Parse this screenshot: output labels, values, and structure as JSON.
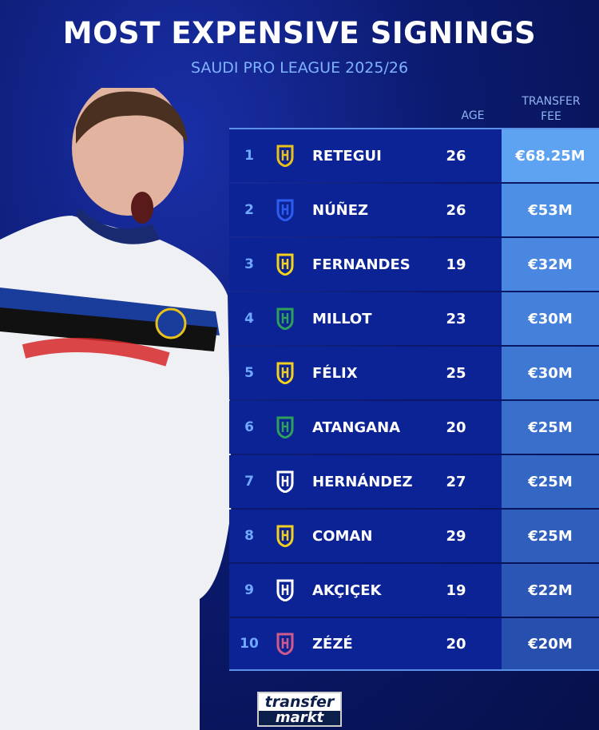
{
  "title": "MOST EXPENSIVE SIGNINGS",
  "subtitle": "SAUDI PRO LEAGUE 2025/26",
  "headers": {
    "age": "AGE",
    "fee_line1": "TRANSFER",
    "fee_line2": "FEE"
  },
  "rows": [
    {
      "rank": "1",
      "name": "RETEGUI",
      "age": "26",
      "fee": "€68.25M",
      "crest": "al-qadsiah-crest",
      "crest_color": "#e8c21a",
      "fee_bg": "#5ea2f2"
    },
    {
      "rank": "2",
      "name": "NÚÑEZ",
      "age": "26",
      "fee": "€53M",
      "crest": "al-hilal-crest",
      "crest_color": "#2c5cf0",
      "fee_bg": "#4e8fe6"
    },
    {
      "rank": "3",
      "name": "FERNANDES",
      "age": "19",
      "fee": "€32M",
      "crest": "al-ittihad-crest",
      "crest_color": "#f2d21a",
      "fee_bg": "#4a87e0"
    },
    {
      "rank": "4",
      "name": "MILLOT",
      "age": "23",
      "fee": "€30M",
      "crest": "al-ahli-crest",
      "crest_color": "#2fa05a",
      "fee_bg": "#4580da"
    },
    {
      "rank": "5",
      "name": "FÉLIX",
      "age": "25",
      "fee": "€30M",
      "crest": "al-nassr-crest",
      "crest_color": "#f0d020",
      "fee_bg": "#3f78d2"
    },
    {
      "rank": "6",
      "name": "ATANGANA",
      "age": "20",
      "fee": "€25M",
      "crest": "al-ahli-crest",
      "crest_color": "#2fa05a",
      "fee_bg": "#396ecb"
    },
    {
      "rank": "7",
      "name": "HERNÁNDEZ",
      "age": "27",
      "fee": "€25M",
      "crest": "al-hilal-crest",
      "crest_color": "#ffffff",
      "fee_bg": "#3466c4"
    },
    {
      "rank": "8",
      "name": "COMAN",
      "age": "29",
      "fee": "€25M",
      "crest": "al-nassr-crest",
      "crest_color": "#f0d020",
      "fee_bg": "#2f5ebd"
    },
    {
      "rank": "9",
      "name": "AKÇIÇEK",
      "age": "19",
      "fee": "€22M",
      "crest": "al-hilal-crest",
      "crest_color": "#ffffff",
      "fee_bg": "#2b56b6"
    },
    {
      "rank": "10",
      "name": "ZÉZÉ",
      "age": "20",
      "fee": "€20M",
      "crest": "neom-crest",
      "crest_color": "#d05a8a",
      "fee_bg": "#2750ae"
    }
  ],
  "logo": {
    "line1": "transfer",
    "line2": "markt"
  }
}
